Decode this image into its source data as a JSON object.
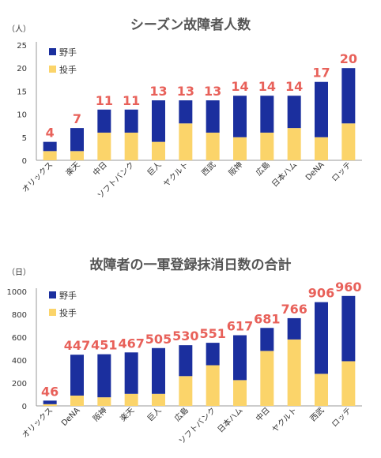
{
  "colors": {
    "fielder": "#1b2f9e",
    "pitcher": "#fbd46a",
    "label": "#e8615a",
    "axis": "#999999"
  },
  "chart_data": [
    {
      "type": "bar",
      "stacked": true,
      "title": "シーズン故障者人数",
      "unit": "（人）",
      "ylim": [
        0,
        25
      ],
      "yticks": [
        0,
        5,
        10,
        15,
        20,
        25
      ],
      "legend": [
        "野手",
        "投手"
      ],
      "legend_position": "top-left",
      "categories": [
        "オリックス",
        "楽天",
        "中日",
        "ソフトバンク",
        "巨人",
        "ヤクルト",
        "西武",
        "阪神",
        "広島",
        "日本ハム",
        "DeNA",
        "ロッテ"
      ],
      "totals": [
        4,
        7,
        11,
        11,
        13,
        13,
        13,
        14,
        14,
        14,
        17,
        20
      ],
      "series": [
        {
          "name": "投手",
          "values": [
            2,
            2,
            6,
            6,
            4,
            8,
            6,
            5,
            6,
            7,
            5,
            8
          ]
        },
        {
          "name": "野手",
          "values": [
            2,
            5,
            5,
            5,
            9,
            5,
            7,
            9,
            8,
            7,
            12,
            12
          ]
        }
      ]
    },
    {
      "type": "bar",
      "stacked": true,
      "title": "故障者の一軍登録抹消日数の合計",
      "unit": "（日）",
      "ylim": [
        0,
        1000
      ],
      "yticks": [
        0,
        200,
        400,
        600,
        800,
        1000
      ],
      "legend": [
        "野手",
        "投手"
      ],
      "legend_position": "top-left",
      "categories": [
        "オリックス",
        "DeNA",
        "阪神",
        "楽天",
        "巨人",
        "広島",
        "ソフトバンク",
        "日本ハム",
        "中日",
        "ヤクルト",
        "西武",
        "ロッテ"
      ],
      "totals": [
        46,
        447,
        451,
        467,
        505,
        530,
        551,
        617,
        681,
        766,
        906,
        960
      ],
      "series": [
        {
          "name": "投手",
          "values": [
            15,
            90,
            75,
            105,
            105,
            260,
            355,
            225,
            480,
            580,
            280,
            390
          ]
        },
        {
          "name": "野手",
          "values": [
            31,
            357,
            376,
            362,
            400,
            270,
            196,
            392,
            201,
            186,
            626,
            570
          ]
        }
      ]
    }
  ]
}
